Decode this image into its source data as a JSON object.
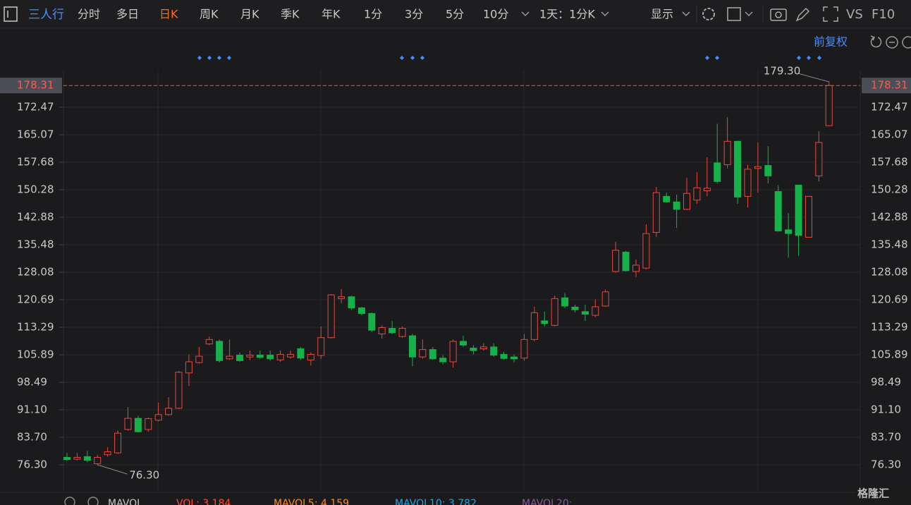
{
  "toolbar": {
    "stock": "三人行",
    "periods": [
      "分时",
      "多日",
      "日K",
      "周K",
      "月K",
      "季K",
      "年K",
      "1分",
      "3分",
      "5分",
      "10分"
    ],
    "active_period": 2,
    "range": "1天：1分K",
    "display": "显示",
    "vs": "VS",
    "f10": "F10"
  },
  "adjust": "前复权",
  "chart_data": {
    "type": "candlestick",
    "open": [
      78.3,
      77.8,
      78.5,
      76.6,
      79,
      79.5,
      85.8,
      88.8,
      85.8,
      88.3,
      89.8,
      91.5,
      101,
      103.8,
      108.8,
      109.5,
      104.8,
      105.8,
      105.3,
      105.8,
      105.8,
      104.5,
      105.3,
      107.5,
      104.5,
      105.7,
      110.5,
      121,
      121.5,
      118.5,
      117,
      111.5,
      113,
      110.8,
      111,
      105.3,
      107.3,
      105,
      104,
      109.5,
      107.7,
      107.5,
      108,
      106,
      105.3,
      105,
      110,
      115,
      113.8,
      121.2,
      118.7,
      117.5,
      116.5,
      119,
      128.3,
      133.5,
      128.3,
      129.2,
      138.8,
      148.5,
      147,
      145,
      147.5,
      150,
      157.5,
      157,
      163.3,
      148.5,
      156,
      156.8,
      149.8,
      139.5,
      151.5,
      137.5,
      154,
      167.5
    ],
    "high": [
      79.5,
      79.5,
      80,
      79,
      81,
      85.5,
      91.8,
      89.5,
      89,
      93,
      94.5,
      101.5,
      106,
      108,
      110.8,
      110,
      110,
      106.5,
      107,
      107,
      107,
      107,
      107,
      108,
      106.5,
      113.5,
      122.2,
      123.5,
      121.8,
      118.8,
      117.2,
      113.8,
      115,
      113.5,
      111.5,
      110,
      108,
      105.8,
      110,
      111,
      108.5,
      109,
      109,
      106.7,
      106,
      111.5,
      118.8,
      117.5,
      121.8,
      122.5,
      119.3,
      119.3,
      120.8,
      123.5,
      136.3,
      133.8,
      131.5,
      141,
      151,
      149.5,
      149,
      153.5,
      155,
      159,
      168,
      169.8,
      163.5,
      157,
      163,
      162,
      151.5,
      144,
      151.5,
      148.5,
      166,
      179.3
    ],
    "low": [
      77.3,
      77.5,
      77,
      76.3,
      78.5,
      79.2,
      85.5,
      85,
      85.2,
      88,
      89.5,
      91.3,
      97.5,
      103.5,
      108.5,
      103.8,
      104.5,
      104,
      104.5,
      104.8,
      104.3,
      104,
      104.8,
      104.5,
      103,
      104.8,
      110.3,
      119.8,
      118,
      116.5,
      112,
      110.2,
      111.5,
      110.5,
      102.8,
      104.8,
      104.5,
      103.3,
      102.5,
      108,
      106,
      107,
      105.3,
      104.5,
      103.8,
      104.3,
      109.5,
      113.5,
      113.5,
      118.5,
      117.3,
      115,
      116,
      118.8,
      128,
      128.3,
      126.8,
      128.8,
      137.5,
      146.8,
      140,
      144.8,
      146.5,
      148.5,
      152,
      156,
      146.5,
      145.5,
      149.5,
      152,
      139,
      132,
      132.5,
      137.5,
      152.5,
      167.5
    ],
    "close": [
      77.7,
      78.3,
      77.5,
      78.3,
      79.8,
      84.8,
      88.8,
      85.2,
      88.7,
      89.8,
      91.5,
      101.2,
      104,
      105.5,
      110,
      104.3,
      105.5,
      104.3,
      105.8,
      105.2,
      104.8,
      106,
      106,
      105,
      106,
      110.5,
      122,
      121.5,
      118.5,
      117,
      112.5,
      113.2,
      111.8,
      113,
      105.3,
      107.3,
      104.8,
      104,
      109.5,
      108.5,
      107,
      108,
      105.8,
      104.9,
      104.8,
      110,
      117.2,
      114.3,
      121,
      119,
      118,
      116.8,
      118.8,
      122.8,
      134,
      128.5,
      130,
      138.5,
      149.5,
      147,
      145,
      149.3,
      150.8,
      150.7,
      152.5,
      163.3,
      148.3,
      155.8,
      156.5,
      154,
      139.2,
      138.5,
      138,
      148.5,
      163,
      178.31
    ],
    "up_color": "#e8473f",
    "down_color": "#17b14a",
    "ylim": [
      69.09,
      180.82
    ],
    "yticks": [
      {
        "value": 76.3,
        "label": "76.30"
      },
      {
        "value": 83.7,
        "label": "83.70"
      },
      {
        "value": 91.1,
        "label": "91.10"
      },
      98.49,
      105.89,
      113.29,
      120.69,
      128.08,
      135.48,
      142.88,
      150.28,
      157.68,
      165.07,
      172.47
    ],
    "grid": true,
    "last_price": 178.31,
    "annotations": [
      {
        "value": 179.3,
        "label": "179.30"
      },
      {
        "value": 76.3,
        "label": "76.30"
      }
    ]
  },
  "indicator": {
    "name": "MAVOL",
    "items": [
      "VOL: 3.184",
      "MAVOL5: 4.159",
      "MAVOL10: 3.782",
      "MAVOL20:"
    ]
  },
  "watermark": "格隆汇"
}
